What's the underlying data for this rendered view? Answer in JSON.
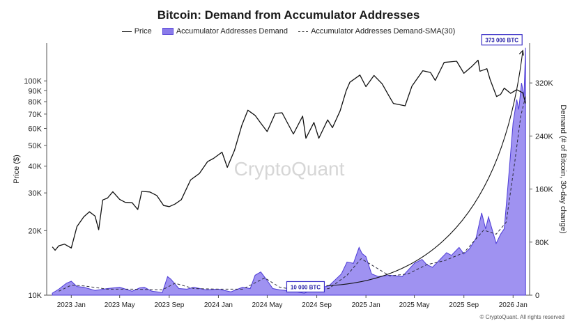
{
  "chart_data": {
    "type": "line",
    "title": "Bitcoin: Demand from Accumulator Addresses",
    "legend": {
      "placement": "top-center",
      "items": [
        "Price",
        "Accumulator Addresses Demand",
        "Accumulator Addresses Demand-SMA(30)"
      ]
    },
    "watermark": "CryptoQuant",
    "credit": "© CryptoQuant. All rights reserved",
    "x_ticks": [
      "2023 Jan",
      "2023 May",
      "2023 Sep",
      "2024 Jan",
      "2024 May",
      "2024 Sep",
      "2025 Jan",
      "2025 May",
      "2025 Sep",
      "2026 Jan"
    ],
    "y_left": {
      "label": "Price ($)",
      "scale": "log",
      "range": [
        10000,
        150000
      ],
      "ticks": [
        {
          "v": 10000,
          "label": "10K"
        },
        {
          "v": 20000,
          "label": "20K"
        },
        {
          "v": 30000,
          "label": "30K"
        },
        {
          "v": 40000,
          "label": "40K"
        },
        {
          "v": 50000,
          "label": "50K"
        },
        {
          "v": 60000,
          "label": "60K"
        },
        {
          "v": 70000,
          "label": "70K"
        },
        {
          "v": 80000,
          "label": "80K"
        },
        {
          "v": 90000,
          "label": "90K"
        },
        {
          "v": 100000,
          "label": "100K"
        }
      ]
    },
    "y_right": {
      "label": "Demand (# of Bitcoin, 30-day change)",
      "scale": "linear",
      "range": [
        0,
        380000
      ],
      "ticks": [
        {
          "v": 0,
          "label": "0"
        },
        {
          "v": 80000,
          "label": "80K"
        },
        {
          "v": 160000,
          "label": "160K"
        },
        {
          "v": 240000,
          "label": "240K"
        },
        {
          "v": 320000,
          "label": "320K"
        }
      ]
    },
    "annotations": [
      {
        "text": "10 000 BTC",
        "date": "2024-09-25",
        "value": 10000
      },
      {
        "text": "373 000 BTC",
        "date": "2026-02-01",
        "value": 373000
      }
    ],
    "series": [
      {
        "name": "Price",
        "axis": "left",
        "points": [
          [
            "2022-11-15",
            16800
          ],
          [
            "2022-11-22",
            16200
          ],
          [
            "2022-12-01",
            17000
          ],
          [
            "2022-12-15",
            17300
          ],
          [
            "2023-01-01",
            16600
          ],
          [
            "2023-01-15",
            20900
          ],
          [
            "2023-02-01",
            23200
          ],
          [
            "2023-02-15",
            24500
          ],
          [
            "2023-03-01",
            23400
          ],
          [
            "2023-03-10",
            20200
          ],
          [
            "2023-03-20",
            27800
          ],
          [
            "2023-04-01",
            28400
          ],
          [
            "2023-04-14",
            30400
          ],
          [
            "2023-05-01",
            28000
          ],
          [
            "2023-05-15",
            27100
          ],
          [
            "2023-06-01",
            27000
          ],
          [
            "2023-06-15",
            25100
          ],
          [
            "2023-06-25",
            30500
          ],
          [
            "2023-07-15",
            30300
          ],
          [
            "2023-08-01",
            29200
          ],
          [
            "2023-08-18",
            26200
          ],
          [
            "2023-09-01",
            25900
          ],
          [
            "2023-09-15",
            26600
          ],
          [
            "2023-10-01",
            27900
          ],
          [
            "2023-10-24",
            34500
          ],
          [
            "2023-11-15",
            37000
          ],
          [
            "2023-12-05",
            42000
          ],
          [
            "2023-12-20",
            43500
          ],
          [
            "2024-01-10",
            46500
          ],
          [
            "2024-01-23",
            39500
          ],
          [
            "2024-02-10",
            47500
          ],
          [
            "2024-02-28",
            62000
          ],
          [
            "2024-03-14",
            73000
          ],
          [
            "2024-04-01",
            69000
          ],
          [
            "2024-04-15",
            63500
          ],
          [
            "2024-05-01",
            58000
          ],
          [
            "2024-05-21",
            70500
          ],
          [
            "2024-06-07",
            71000
          ],
          [
            "2024-07-05",
            56500
          ],
          [
            "2024-07-28",
            68500
          ],
          [
            "2024-08-05",
            54000
          ],
          [
            "2024-08-25",
            64000
          ],
          [
            "2024-09-06",
            54000
          ],
          [
            "2024-09-28",
            65800
          ],
          [
            "2024-10-10",
            60500
          ],
          [
            "2024-10-29",
            72500
          ],
          [
            "2024-11-13",
            90000
          ],
          [
            "2024-11-22",
            98500
          ],
          [
            "2024-12-17",
            106500
          ],
          [
            "2025-01-01",
            94000
          ],
          [
            "2025-01-21",
            106000
          ],
          [
            "2025-02-10",
            97000
          ],
          [
            "2025-02-28",
            84500
          ],
          [
            "2025-03-10",
            78500
          ],
          [
            "2025-04-08",
            76500
          ],
          [
            "2025-04-25",
            94500
          ],
          [
            "2025-05-22",
            111500
          ],
          [
            "2025-06-10",
            109500
          ],
          [
            "2025-06-22",
            100500
          ],
          [
            "2025-07-14",
            122000
          ],
          [
            "2025-08-14",
            123500
          ],
          [
            "2025-09-01",
            108500
          ],
          [
            "2025-09-20",
            116500
          ],
          [
            "2025-10-06",
            125000
          ],
          [
            "2025-10-11",
            111000
          ],
          [
            "2025-10-28",
            114000
          ],
          [
            "2025-11-05",
            101500
          ],
          [
            "2025-11-21",
            84500
          ],
          [
            "2025-12-01",
            86500
          ],
          [
            "2025-12-10",
            92500
          ],
          [
            "2025-12-26",
            87500
          ],
          [
            "2026-01-10",
            91000
          ],
          [
            "2026-01-25",
            88000
          ],
          [
            "2026-02-01",
            78500
          ]
        ]
      },
      {
        "name": "Accumulator Addresses Demand",
        "axis": "right",
        "points": [
          [
            "2022-11-15",
            3000
          ],
          [
            "2022-12-01",
            9000
          ],
          [
            "2022-12-20",
            18000
          ],
          [
            "2023-01-01",
            21000
          ],
          [
            "2023-01-15",
            13000
          ],
          [
            "2023-02-01",
            12000
          ],
          [
            "2023-03-01",
            7000
          ],
          [
            "2023-04-01",
            10000
          ],
          [
            "2023-05-01",
            12000
          ],
          [
            "2023-06-01",
            6000
          ],
          [
            "2023-06-20",
            11000
          ],
          [
            "2023-07-01",
            12000
          ],
          [
            "2023-07-20",
            6000
          ],
          [
            "2023-08-15",
            4000
          ],
          [
            "2023-08-28",
            28000
          ],
          [
            "2023-09-05",
            24000
          ],
          [
            "2023-09-25",
            10000
          ],
          [
            "2023-10-15",
            9000
          ],
          [
            "2023-11-01",
            12000
          ],
          [
            "2023-12-01",
            8000
          ],
          [
            "2024-01-01",
            9000
          ],
          [
            "2024-02-01",
            5000
          ],
          [
            "2024-03-01",
            12000
          ],
          [
            "2024-03-20",
            10000
          ],
          [
            "2024-04-01",
            30000
          ],
          [
            "2024-04-15",
            35000
          ],
          [
            "2024-05-01",
            22000
          ],
          [
            "2024-05-15",
            10000
          ],
          [
            "2024-06-01",
            8000
          ],
          [
            "2024-07-01",
            6000
          ],
          [
            "2024-08-01",
            3000
          ],
          [
            "2024-09-01",
            10000
          ],
          [
            "2024-10-01",
            14000
          ],
          [
            "2024-11-01",
            32000
          ],
          [
            "2024-11-15",
            50000
          ],
          [
            "2024-12-01",
            48000
          ],
          [
            "2024-12-15",
            72000
          ],
          [
            "2024-12-22",
            63000
          ],
          [
            "2025-01-01",
            58000
          ],
          [
            "2025-01-15",
            32000
          ],
          [
            "2025-02-01",
            28000
          ],
          [
            "2025-03-01",
            30000
          ],
          [
            "2025-04-01",
            28000
          ],
          [
            "2025-05-01",
            48000
          ],
          [
            "2025-05-20",
            54000
          ],
          [
            "2025-06-01",
            46000
          ],
          [
            "2025-06-15",
            42000
          ],
          [
            "2025-07-01",
            52000
          ],
          [
            "2025-07-20",
            64000
          ],
          [
            "2025-08-01",
            60000
          ],
          [
            "2025-08-20",
            72000
          ],
          [
            "2025-09-01",
            62000
          ],
          [
            "2025-09-15",
            70000
          ],
          [
            "2025-10-01",
            86000
          ],
          [
            "2025-10-15",
            124000
          ],
          [
            "2025-10-25",
            100000
          ],
          [
            "2025-11-01",
            118000
          ],
          [
            "2025-11-20",
            78000
          ],
          [
            "2025-12-01",
            92000
          ],
          [
            "2025-12-10",
            100000
          ],
          [
            "2025-12-20",
            170000
          ],
          [
            "2026-01-01",
            260000
          ],
          [
            "2026-01-10",
            295000
          ],
          [
            "2026-01-15",
            280000
          ],
          [
            "2026-01-22",
            320000
          ],
          [
            "2026-01-28",
            300000
          ],
          [
            "2026-02-01",
            373000
          ]
        ]
      },
      {
        "name": "Accumulator Addresses Demand-SMA(30)",
        "axis": "right",
        "points": [
          [
            "2022-12-01",
            6000
          ],
          [
            "2023-01-01",
            15000
          ],
          [
            "2023-02-01",
            14000
          ],
          [
            "2023-04-01",
            9000
          ],
          [
            "2023-06-01",
            9000
          ],
          [
            "2023-08-15",
            8000
          ],
          [
            "2023-09-15",
            18000
          ],
          [
            "2023-11-01",
            10000
          ],
          [
            "2024-01-01",
            9000
          ],
          [
            "2024-03-01",
            9000
          ],
          [
            "2024-04-25",
            26000
          ],
          [
            "2024-06-01",
            12000
          ],
          [
            "2024-08-01",
            6000
          ],
          [
            "2024-10-01",
            10000
          ],
          [
            "2024-11-15",
            30000
          ],
          [
            "2024-12-20",
            55000
          ],
          [
            "2025-01-25",
            42000
          ],
          [
            "2025-03-01",
            29000
          ],
          [
            "2025-04-15",
            32000
          ],
          [
            "2025-06-01",
            46000
          ],
          [
            "2025-07-15",
            52000
          ],
          [
            "2025-09-01",
            64000
          ],
          [
            "2025-10-20",
            98000
          ],
          [
            "2025-11-20",
            92000
          ],
          [
            "2025-12-15",
            110000
          ],
          [
            "2026-01-05",
            200000
          ],
          [
            "2026-01-20",
            270000
          ],
          [
            "2026-02-01",
            300000
          ]
        ]
      }
    ]
  }
}
